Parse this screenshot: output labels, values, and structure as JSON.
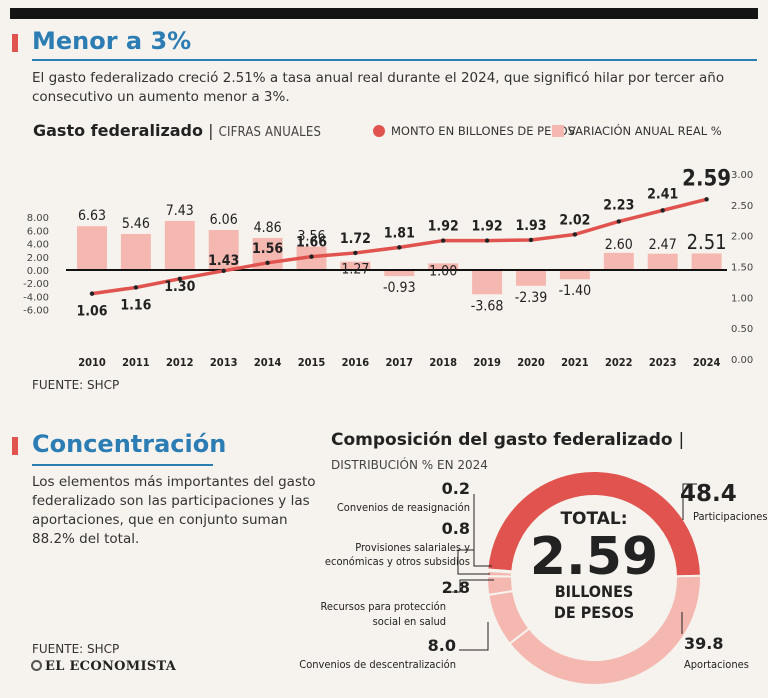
{
  "section1": {
    "title": "Menor a 3%",
    "text": "El gasto federalizado creció 2.51% a tasa anual real durante el 2024, que significó hilar por tercer año consecutivo un aumento menor a 3%."
  },
  "chart_header": {
    "title": "Gasto federalizado",
    "separator": "|",
    "subtitle": "CIFRAS ANUALES",
    "legend_line": "MONTO EN BILLONES DE PESOS",
    "legend_bar": "VARIACIÓN ANUAL REAL %"
  },
  "source1": "FUENTE: SHCP",
  "chart_data": {
    "type": "bar+line",
    "categories": [
      "2010",
      "2011",
      "2012",
      "2013",
      "2014",
      "2015",
      "2016",
      "2017",
      "2018",
      "2019",
      "2020",
      "2021",
      "2022",
      "2023",
      "2024"
    ],
    "series": [
      {
        "name": "VARIACIÓN ANUAL REAL %",
        "type": "bar",
        "axis": "left",
        "color": "#f4b8b1",
        "values": [
          6.63,
          5.46,
          7.43,
          6.06,
          4.86,
          3.56,
          1.27,
          -0.93,
          1.0,
          -3.68,
          -2.39,
          -1.4,
          2.6,
          2.47,
          2.51
        ],
        "labels": [
          "6.63",
          "5.46",
          "7.43",
          "6.06",
          "4.86",
          "3.56",
          "1.27",
          "-0.93",
          "1.00",
          "-3.68",
          "-2.39",
          "-1.40",
          "2.60",
          "2.47",
          "2.51"
        ]
      },
      {
        "name": "MONTO EN BILLONES DE PESOS",
        "type": "line",
        "axis": "right",
        "color": "#e0534e",
        "values": [
          1.06,
          1.16,
          1.3,
          1.43,
          1.56,
          1.66,
          1.72,
          1.81,
          1.92,
          1.92,
          1.93,
          2.02,
          2.23,
          2.41,
          2.59
        ],
        "labels": [
          "1.06",
          "1.16",
          "1.30",
          "1.43",
          "1.56",
          "1.66",
          "1.72",
          "1.81",
          "1.92",
          "1.92",
          "1.93",
          "2.02",
          "2.23",
          "2.41",
          "2.59"
        ]
      }
    ],
    "left_axis": {
      "ticks": [
        "8.00",
        "6.00",
        "4.00",
        "2.00",
        "0.00",
        "-2.00",
        "-4.00",
        "-6.00"
      ],
      "range": [
        -6,
        8
      ]
    },
    "right_axis": {
      "ticks": [
        "3.00",
        "2.50",
        "2.00",
        "1.50",
        "1.00",
        "0.50",
        "0.00"
      ],
      "range": [
        0,
        3
      ]
    }
  },
  "section2": {
    "title": "Concentración",
    "text": "Los elementos más importantes del gasto federalizado son las participaciones y las aportaciones, que en conjunto suman 88.2% del total."
  },
  "composition": {
    "title": "Composición del gasto federalizado",
    "separator": "|",
    "subtitle": "DISTRIBUCIÓN % EN 2024",
    "center_total": "TOTAL:",
    "center_value": "2.59",
    "center_unit_1": "BILLONES",
    "center_unit_2": "DE PESOS",
    "chart_data": {
      "type": "pie",
      "slices": [
        {
          "label": "Participaciones",
          "value": "48.4",
          "pct": 48.4,
          "color": "#e0534e"
        },
        {
          "label": "Aportaciones",
          "value": "39.8",
          "pct": 39.8,
          "color": "#f4b8b1"
        },
        {
          "label": "Convenios de descentralización",
          "value": "8.0",
          "pct": 8.0,
          "color": "#f4b8b1"
        },
        {
          "label": "Recursos para protección social en salud",
          "value": "2.8",
          "pct": 2.8,
          "color": "#f4b8b1"
        },
        {
          "label": "Provisiones salariales y económicas y otros subsidios",
          "value": "0.8",
          "pct": 0.8,
          "color": "#f4b8b1"
        },
        {
          "label": "Convenios de reasignación",
          "value": "0.2",
          "pct": 0.2,
          "color": "#f4b8b1"
        }
      ]
    },
    "label_lines": {
      "participaciones": "Participaciones",
      "aportaciones": "Aportaciones",
      "descentralizacion": "Convenios de descentralización",
      "salud_1": "Recursos para protección",
      "salud_2": "social en salud",
      "provisiones_1": "Provisiones salariales y",
      "provisiones_2": "económicas y otros subsidios",
      "reasignacion": "Convenios de reasignación"
    }
  },
  "source2": "FUENTE: SHCP",
  "logo": "EL ECONOMISTA",
  "colors": {
    "accent": "#e0534e",
    "bar": "#f4b8b1",
    "title_blue": "#2b7db3"
  }
}
